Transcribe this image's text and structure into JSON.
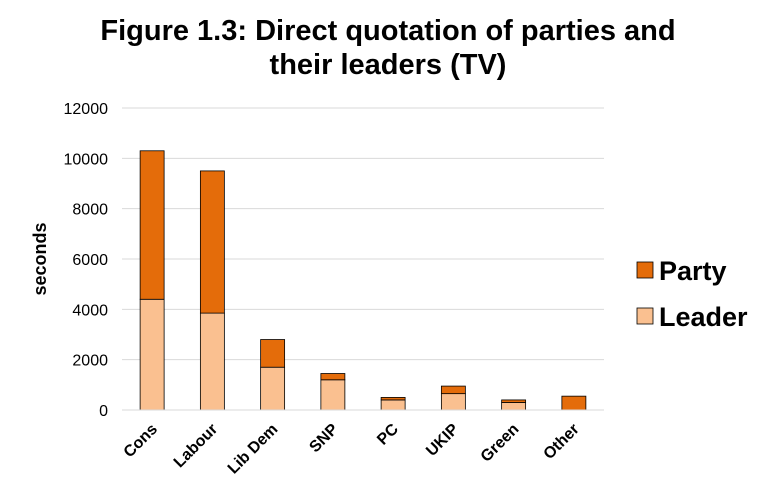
{
  "chart_data": {
    "type": "bar",
    "stacked": true,
    "title_lines": [
      "Figure 1.3: Direct quotation of parties and",
      "their leaders (TV)"
    ],
    "xlabel": "",
    "ylabel": "seconds",
    "ylim": [
      0,
      12000
    ],
    "yticks": [
      0,
      2000,
      4000,
      6000,
      8000,
      10000,
      12000
    ],
    "ytick_labels": [
      "0",
      "2000",
      "4000",
      "6000",
      "8000",
      "10000",
      "12000"
    ],
    "grid": true,
    "legend_position": "right",
    "categories": [
      "Cons",
      "Labour",
      "Lib Dem",
      "SNP",
      "PC",
      "UKIP",
      "Green",
      "Other"
    ],
    "series": [
      {
        "name": "Leader",
        "color": "#fac090",
        "values": [
          4400,
          3850,
          1700,
          1200,
          400,
          650,
          300,
          0
        ]
      },
      {
        "name": "Party",
        "color": "#e46c0a",
        "values": [
          5900,
          5650,
          1100,
          250,
          100,
          300,
          100,
          550
        ]
      }
    ],
    "legend_order": [
      "Party",
      "Leader"
    ]
  }
}
